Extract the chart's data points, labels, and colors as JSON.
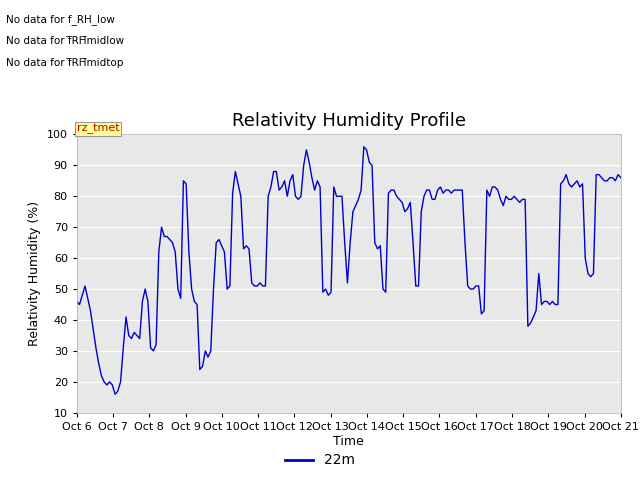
{
  "title": "Relativity Humidity Profile",
  "ylabel": "Relativity Humidity (%)",
  "xlabel": "Time",
  "ylim": [
    10,
    100
  ],
  "yticks": [
    10,
    20,
    30,
    40,
    50,
    60,
    70,
    80,
    90,
    100
  ],
  "xtick_labels": [
    "Oct 6",
    "Oct 7",
    "Oct 8",
    "Oct 9",
    "Oct 10",
    "Oct 11",
    "Oct 12",
    "Oct 13",
    "Oct 14",
    "Oct 15",
    "Oct 16",
    "Oct 17",
    "Oct 18",
    "Oct 19",
    "Oct 20",
    "Oct 21"
  ],
  "line_color": "#0000cc",
  "line_label": "22m",
  "no_data_texts": [
    "No data for f_RH_low",
    "No data for f̲RH̲midlow",
    "No data for f̲RH̲midtop"
  ],
  "annotation_text": "rz_tmet",
  "annotation_color": "#cc0000",
  "annotation_bg": "#ffff99",
  "plot_bg": "#e8e8e8",
  "title_fontsize": 13,
  "label_fontsize": 9,
  "tick_fontsize": 8,
  "rh_values": [
    46,
    45,
    48,
    51,
    47,
    43,
    37,
    31,
    26,
    22,
    20,
    19,
    20,
    19,
    16,
    17,
    20,
    31,
    41,
    35,
    34,
    36,
    35,
    34,
    46,
    50,
    46,
    31,
    30,
    32,
    62,
    70,
    67,
    67,
    66,
    65,
    62,
    50,
    47,
    85,
    84,
    62,
    50,
    46,
    45,
    24,
    25,
    30,
    28,
    30,
    50,
    65,
    66,
    64,
    62,
    50,
    51,
    81,
    88,
    84,
    80,
    63,
    64,
    63,
    52,
    51,
    51,
    52,
    51,
    51,
    80,
    83,
    88,
    88,
    82,
    83,
    85,
    80,
    85,
    87,
    80,
    79,
    80,
    90,
    95,
    91,
    86,
    82,
    85,
    83,
    49,
    50,
    48,
    49,
    83,
    80,
    80,
    80,
    65,
    52,
    65,
    75,
    77,
    79,
    82,
    96,
    95,
    91,
    90,
    65,
    63,
    64,
    50,
    49,
    81,
    82,
    82,
    80,
    79,
    78,
    75,
    76,
    78,
    65,
    51,
    51,
    75,
    80,
    82,
    82,
    79,
    79,
    82,
    83,
    81,
    82,
    82,
    81,
    82,
    82,
    82,
    82,
    65,
    51,
    50,
    50,
    51,
    51,
    42,
    43,
    82,
    80,
    83,
    83,
    82,
    79,
    77,
    80,
    79,
    79,
    80,
    79,
    78,
    79,
    79,
    38,
    39,
    41,
    43,
    55,
    45,
    46,
    46,
    45,
    46,
    45,
    45,
    84,
    85,
    87,
    84,
    83,
    84,
    85,
    83,
    84,
    60,
    55,
    54,
    55,
    87,
    87,
    86,
    85,
    85,
    86,
    86,
    85,
    87,
    86
  ]
}
